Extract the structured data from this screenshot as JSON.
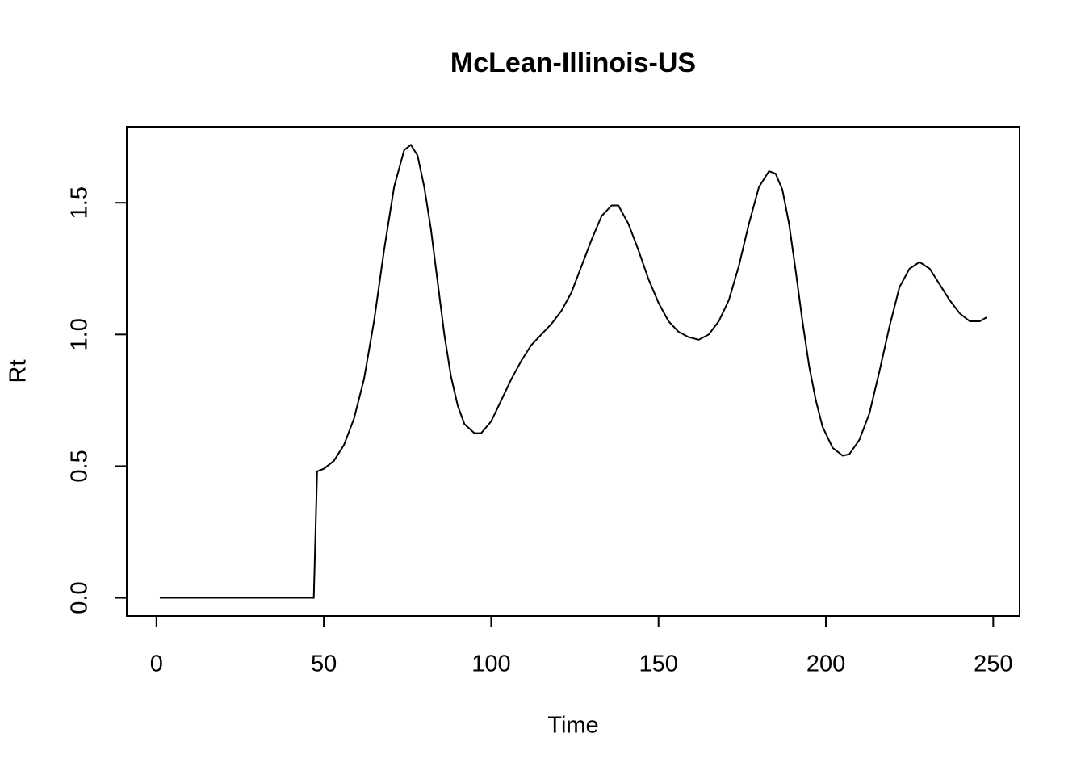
{
  "chart_data": {
    "type": "line",
    "title": "McLean-Illinois-US",
    "x_label": "Time",
    "y_label": "Rt",
    "color": "#000000",
    "x": [
      1,
      47,
      48,
      50,
      53,
      56,
      59,
      62,
      65,
      68,
      71,
      74,
      76,
      78,
      80,
      82,
      84,
      86,
      88,
      90,
      92,
      95,
      97,
      100,
      103,
      106,
      109,
      112,
      115,
      118,
      121,
      124,
      127,
      130,
      133,
      136,
      138,
      141,
      144,
      147,
      150,
      153,
      156,
      159,
      162,
      165,
      168,
      171,
      174,
      177,
      180,
      183,
      185,
      187,
      189,
      191,
      193,
      195,
      197,
      199,
      202,
      205,
      207,
      210,
      213,
      216,
      219,
      222,
      225,
      228,
      231,
      234,
      237,
      240,
      243,
      246,
      248
    ],
    "values": [
      0,
      0,
      0.48,
      0.49,
      0.52,
      0.58,
      0.68,
      0.83,
      1.05,
      1.32,
      1.56,
      1.7,
      1.72,
      1.68,
      1.56,
      1.4,
      1.2,
      1.0,
      0.84,
      0.73,
      0.66,
      0.625,
      0.625,
      0.67,
      0.75,
      0.83,
      0.9,
      0.96,
      1.0,
      1.04,
      1.09,
      1.16,
      1.26,
      1.36,
      1.45,
      1.49,
      1.49,
      1.42,
      1.32,
      1.21,
      1.12,
      1.05,
      1.01,
      0.99,
      0.98,
      1.0,
      1.05,
      1.13,
      1.26,
      1.42,
      1.56,
      1.62,
      1.61,
      1.55,
      1.42,
      1.24,
      1.05,
      0.88,
      0.75,
      0.65,
      0.57,
      0.54,
      0.545,
      0.6,
      0.7,
      0.86,
      1.03,
      1.18,
      1.25,
      1.275,
      1.25,
      1.19,
      1.13,
      1.08,
      1.05,
      1.05,
      1.065
    ],
    "xlim": [
      -8.88,
      257.88
    ],
    "ylim": [
      -0.0688,
      1.7888
    ],
    "xticks": [
      0,
      50,
      100,
      150,
      200,
      250
    ],
    "yticks": [
      {
        "value": 0,
        "label": "0.0"
      },
      0.5,
      {
        "value": 1,
        "label": "1.0"
      },
      1.5
    ]
  }
}
